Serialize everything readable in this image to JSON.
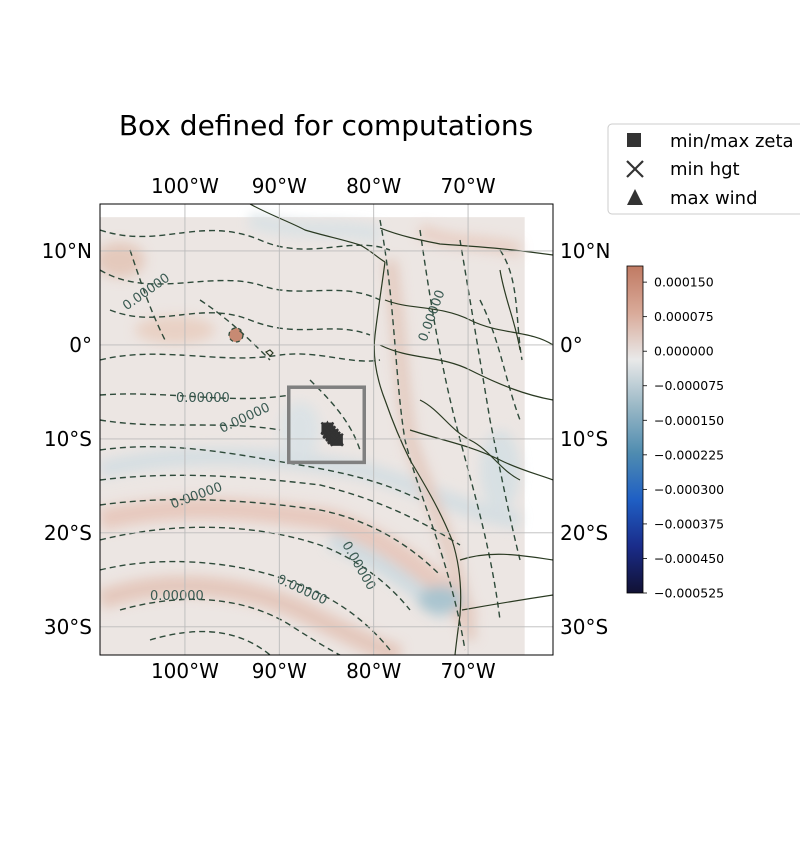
{
  "title": "Box defined for computations",
  "map": {
    "projection": "PlateCarree",
    "lon_range": [
      -109,
      -61
    ],
    "lat_range": [
      -33,
      15
    ],
    "data_lon_range": [
      -109,
      -64
    ],
    "data_lat_range": [
      -33,
      13.6
    ],
    "lon_ticks": [
      {
        "value": -100,
        "label": "100°W"
      },
      {
        "value": -90,
        "label": "90°W"
      },
      {
        "value": -80,
        "label": "80°W"
      },
      {
        "value": -70,
        "label": "70°W"
      }
    ],
    "lat_ticks": [
      {
        "value": 10,
        "label": "10°N"
      },
      {
        "value": 0,
        "label": "0°"
      },
      {
        "value": -10,
        "label": "10°S"
      },
      {
        "value": -20,
        "label": "20°S"
      },
      {
        "value": -30,
        "label": "30°S"
      }
    ],
    "gridlines": true,
    "computation_box": {
      "lon_min": -89,
      "lon_max": -81,
      "lat_min": -12.5,
      "lat_max": -4.5,
      "color": "#808080"
    },
    "track_points": [
      {
        "lon": -84.9,
        "lat": -8.9
      },
      {
        "lon": -84.7,
        "lat": -9.3
      },
      {
        "lon": -84.4,
        "lat": -9.6
      },
      {
        "lon": -84.2,
        "lat": -9.9
      },
      {
        "lon": -83.9,
        "lat": -10.1
      }
    ],
    "contour_label": "0.00000",
    "contour_color": "#2e4a3a",
    "coastline_color": "#2a3a22"
  },
  "colorbar": {
    "colors": [
      "#111133",
      "#1a2c8a",
      "#1f5fc4",
      "#4f8cb0",
      "#9ab8c6",
      "#e9e9e9",
      "#d9aa99",
      "#c07a63"
    ],
    "range": [
      -0.000525,
      0.000185
    ],
    "ticks": [
      "0.000150",
      "0.000075",
      "0.000000",
      "−0.000075",
      "−0.000150",
      "−0.000225",
      "−0.000300",
      "−0.000375",
      "−0.000450",
      "−0.000525"
    ],
    "tick_values": [
      0.00015,
      7.5e-05,
      0,
      -7.5e-05,
      -0.00015,
      -0.000225,
      -0.0003,
      -0.000375,
      -0.00045,
      -0.000525
    ]
  },
  "legend": {
    "items": [
      {
        "marker": "square",
        "label": "min/max zeta"
      },
      {
        "marker": "x",
        "label": "min hgt"
      },
      {
        "marker": "triangle",
        "label": "max wind"
      }
    ],
    "placement": "upper-right outside"
  },
  "colors": {
    "marker": "#333333",
    "frame": "#000000",
    "grid": "#bbbbbb",
    "legend_border": "#cccccc"
  }
}
